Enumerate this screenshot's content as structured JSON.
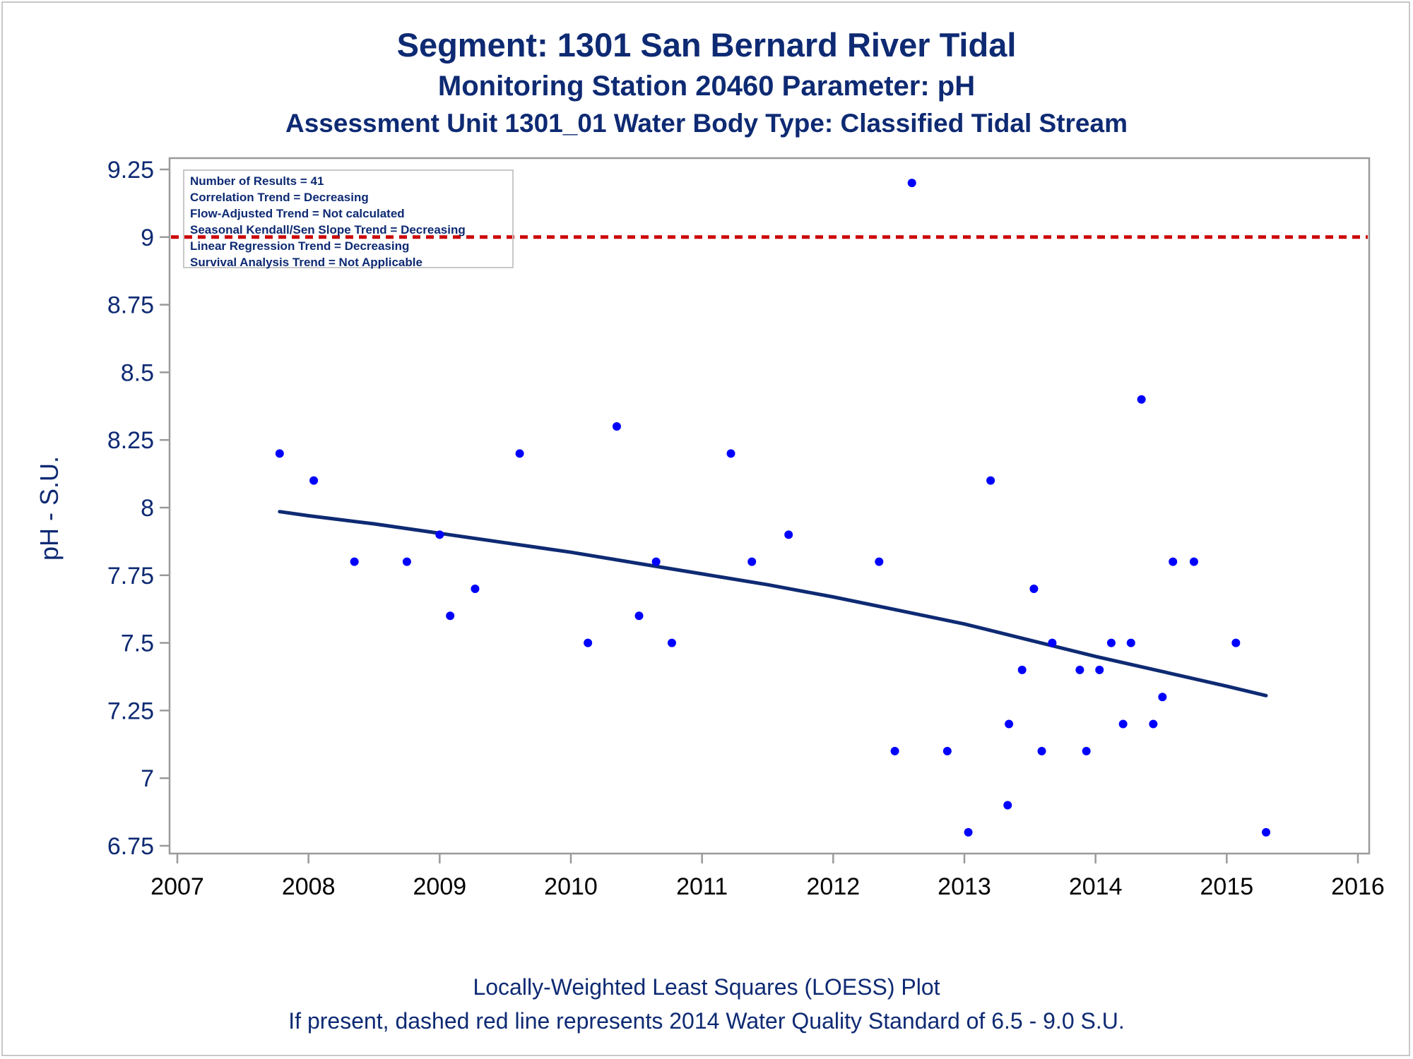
{
  "title": "Segment: 1301  San Bernard River Tidal",
  "subtitle": "Monitoring Station 20460 Parameter: pH",
  "subtitle2": "Assessment Unit 1301_01   Water Body Type: Classified Tidal Stream",
  "footnotes": [
    "Locally-Weighted Least Squares (LOESS) Plot",
    "If present, dashed red line represents 2014 Water Quality Standard of 6.5 - 9.0 S.U."
  ],
  "stats": [
    "Number of Results = 41",
    "Correlation Trend = Decreasing",
    "Flow-Adjusted Trend = Not calculated",
    "Seasonal Kendall/Sen Slope Trend = Decreasing",
    "Linear Regression Trend = Decreasing",
    "Survival Analysis Trend = Not Applicable"
  ],
  "colors": {
    "text": "#0e2a73",
    "points": "#0000ff",
    "loess": "#0e2a73",
    "standard_line": "#cc0000",
    "axis": "#9a9a9a"
  },
  "chart_data": {
    "type": "scatter",
    "ylabel": "pH - S.U.",
    "xlabel": "",
    "xlim": [
      2007,
      2016
    ],
    "ylim": [
      6.75,
      9.25
    ],
    "x_ticks": [
      2007,
      2008,
      2009,
      2010,
      2011,
      2012,
      2013,
      2014,
      2015,
      2016
    ],
    "y_ticks": [
      {
        "value": 6.75,
        "label": "6.75"
      },
      {
        "value": 7,
        "label": "7"
      },
      {
        "value": 7.25,
        "label": "7.25"
      },
      {
        "value": 7.5,
        "label": "7.5"
      },
      {
        "value": 7.75,
        "label": "7.75"
      },
      {
        "value": 8,
        "label": "8"
      },
      {
        "value": 8.25,
        "label": "8.25"
      },
      {
        "value": 8.5,
        "label": "8.5"
      },
      {
        "value": 8.75,
        "label": "8.75"
      },
      {
        "value": 9,
        "label": "9"
      },
      {
        "value": 9.25,
        "label": "9.25"
      }
    ],
    "standard_line": {
      "y": 9.0,
      "style": "dashed"
    },
    "points": [
      {
        "x": 2007.78,
        "y": 8.2
      },
      {
        "x": 2008.04,
        "y": 8.1
      },
      {
        "x": 2008.35,
        "y": 7.8
      },
      {
        "x": 2008.75,
        "y": 7.8
      },
      {
        "x": 2009.0,
        "y": 7.9
      },
      {
        "x": 2009.08,
        "y": 7.6
      },
      {
        "x": 2009.27,
        "y": 7.7
      },
      {
        "x": 2009.61,
        "y": 8.2
      },
      {
        "x": 2010.13,
        "y": 7.5
      },
      {
        "x": 2010.35,
        "y": 8.3
      },
      {
        "x": 2010.52,
        "y": 7.6
      },
      {
        "x": 2010.65,
        "y": 7.8
      },
      {
        "x": 2010.77,
        "y": 7.5
      },
      {
        "x": 2011.22,
        "y": 8.2
      },
      {
        "x": 2011.38,
        "y": 7.8
      },
      {
        "x": 2011.66,
        "y": 7.9
      },
      {
        "x": 2012.35,
        "y": 7.8
      },
      {
        "x": 2012.47,
        "y": 7.1
      },
      {
        "x": 2012.6,
        "y": 9.2
      },
      {
        "x": 2012.87,
        "y": 7.1
      },
      {
        "x": 2013.03,
        "y": 6.8
      },
      {
        "x": 2013.2,
        "y": 8.1
      },
      {
        "x": 2013.33,
        "y": 6.9
      },
      {
        "x": 2013.34,
        "y": 7.2
      },
      {
        "x": 2013.44,
        "y": 7.4
      },
      {
        "x": 2013.53,
        "y": 7.7
      },
      {
        "x": 2013.59,
        "y": 7.1
      },
      {
        "x": 2013.67,
        "y": 7.5
      },
      {
        "x": 2013.88,
        "y": 7.4
      },
      {
        "x": 2013.93,
        "y": 7.1
      },
      {
        "x": 2014.03,
        "y": 7.4
      },
      {
        "x": 2014.12,
        "y": 7.5
      },
      {
        "x": 2014.21,
        "y": 7.2
      },
      {
        "x": 2014.27,
        "y": 7.5
      },
      {
        "x": 2014.35,
        "y": 8.4
      },
      {
        "x": 2014.44,
        "y": 7.2
      },
      {
        "x": 2014.51,
        "y": 7.3
      },
      {
        "x": 2014.59,
        "y": 7.8
      },
      {
        "x": 2014.75,
        "y": 7.8
      },
      {
        "x": 2015.07,
        "y": 7.5
      },
      {
        "x": 2015.3,
        "y": 6.8
      }
    ],
    "loess": [
      {
        "x": 2007.78,
        "y": 7.985
      },
      {
        "x": 2008.0,
        "y": 7.97
      },
      {
        "x": 2008.5,
        "y": 7.94
      },
      {
        "x": 2009.0,
        "y": 7.905
      },
      {
        "x": 2009.5,
        "y": 7.87
      },
      {
        "x": 2010.0,
        "y": 7.835
      },
      {
        "x": 2010.5,
        "y": 7.795
      },
      {
        "x": 2011.0,
        "y": 7.755
      },
      {
        "x": 2011.5,
        "y": 7.715
      },
      {
        "x": 2012.0,
        "y": 7.67
      },
      {
        "x": 2012.5,
        "y": 7.62
      },
      {
        "x": 2013.0,
        "y": 7.57
      },
      {
        "x": 2013.5,
        "y": 7.51
      },
      {
        "x": 2014.0,
        "y": 7.45
      },
      {
        "x": 2014.5,
        "y": 7.395
      },
      {
        "x": 2015.0,
        "y": 7.34
      },
      {
        "x": 2015.3,
        "y": 7.305
      }
    ]
  }
}
